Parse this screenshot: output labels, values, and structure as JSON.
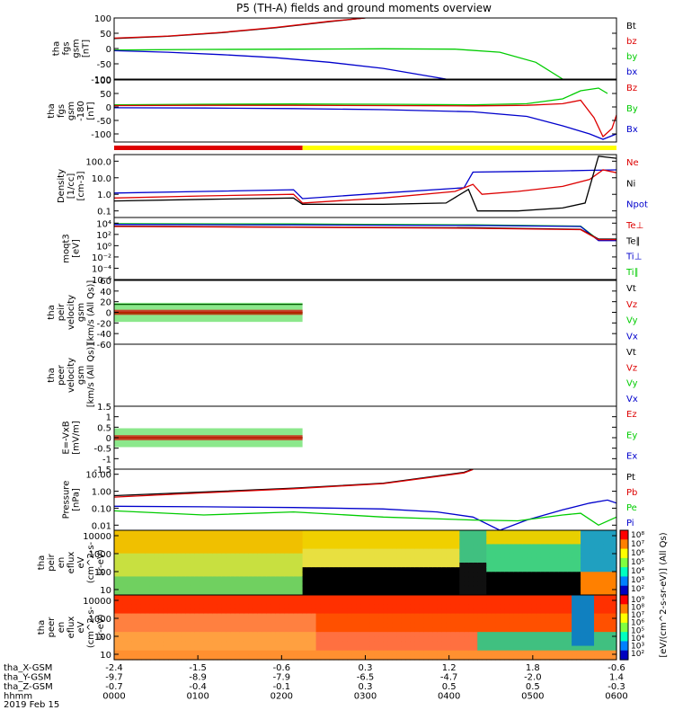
{
  "title": "P5 (TH-A) fields and ground moments overview",
  "date_label": "2019 Feb 15",
  "colors": {
    "black": "#000000",
    "red": "#dd0000",
    "green": "#00cc00",
    "blue": "#0000cc",
    "yellow": "#ffff00"
  },
  "chart_data": [
    {
      "type": "line",
      "id": "fgs",
      "ylabel": [
        "tha",
        "fgs",
        "gsm",
        "[nT]"
      ],
      "ylim": [
        -100,
        100
      ],
      "ticks": [
        "100",
        "50",
        "0",
        "-50",
        "-100"
      ],
      "tick_values": [
        100,
        50,
        0,
        -50,
        -100
      ],
      "legend": [
        "Bt",
        "bz",
        "by",
        "bx"
      ],
      "series": [
        {
          "name": "Bt",
          "color": "#000000",
          "points": [
            [
              0,
              33
            ],
            [
              60,
              40
            ],
            [
              120,
              52
            ],
            [
              180,
              68
            ],
            [
              240,
              88
            ],
            [
              280,
              100
            ]
          ]
        },
        {
          "name": "bz",
          "color": "#dd0000",
          "points": [
            [
              0,
              34
            ],
            [
              60,
              41
            ],
            [
              120,
              53
            ],
            [
              180,
              69
            ],
            [
              240,
              89
            ],
            [
              280,
              100
            ]
          ]
        },
        {
          "name": "by",
          "color": "#00cc00",
          "points": [
            [
              0,
              -5
            ],
            [
              100,
              -3
            ],
            [
              200,
              -2
            ],
            [
              300,
              -1
            ],
            [
              380,
              -2
            ],
            [
              430,
              -12
            ],
            [
              470,
              -45
            ],
            [
              500,
              -100
            ]
          ]
        },
        {
          "name": "bx",
          "color": "#0000cc",
          "points": [
            [
              0,
              -7
            ],
            [
              60,
              -12
            ],
            [
              120,
              -20
            ],
            [
              180,
              -30
            ],
            [
              240,
              -45
            ],
            [
              300,
              -65
            ],
            [
              370,
              -100
            ]
          ]
        }
      ]
    },
    {
      "type": "line",
      "id": "fgs2",
      "ylabel": [
        "tha",
        "fgs",
        "gsm",
        "-180",
        "[nT]"
      ],
      "ylim": [
        -130,
        100
      ],
      "ticks": [
        "100",
        "50",
        "0",
        "-50",
        "-100"
      ],
      "tick_values": [
        100,
        50,
        0,
        -50,
        -100
      ],
      "legend": [
        "Bz",
        "By",
        "Bx"
      ],
      "series": [
        {
          "name": "By",
          "color": "#00cc00",
          "points": [
            [
              0,
              8
            ],
            [
              100,
              10
            ],
            [
              200,
              11
            ],
            [
              300,
              10
            ],
            [
              400,
              8
            ],
            [
              460,
              12
            ],
            [
              500,
              30
            ],
            [
              520,
              60
            ],
            [
              540,
              70
            ],
            [
              550,
              50
            ]
          ]
        },
        {
          "name": "Bz",
          "color": "#dd0000",
          "points": [
            [
              0,
              5
            ],
            [
              100,
              6
            ],
            [
              200,
              6
            ],
            [
              300,
              5
            ],
            [
              400,
              4
            ],
            [
              460,
              6
            ],
            [
              500,
              12
            ],
            [
              520,
              25
            ],
            [
              535,
              -40
            ],
            [
              545,
              -110
            ],
            [
              555,
              -80
            ],
            [
              560,
              -30
            ]
          ]
        },
        {
          "name": "Bx",
          "color": "#0000cc",
          "points": [
            [
              0,
              -3
            ],
            [
              100,
              -4
            ],
            [
              200,
              -6
            ],
            [
              300,
              -10
            ],
            [
              400,
              -18
            ],
            [
              460,
              -35
            ],
            [
              500,
              -70
            ],
            [
              530,
              -100
            ],
            [
              545,
              -120
            ],
            [
              560,
              -100
            ]
          ]
        }
      ]
    },
    {
      "type": "line",
      "id": "density",
      "ylabel": [
        "Density",
        "[1/cc]",
        "[cm-3]"
      ],
      "ylim": [
        0.04,
        250
      ],
      "log": true,
      "ticks": [
        "100.0",
        "10.0",
        "1.0",
        "0.1"
      ],
      "tick_values": [
        100,
        10,
        1,
        0.1
      ],
      "legend": [
        "Ne",
        "Ni",
        "Npot"
      ],
      "series": [
        {
          "name": "Npot",
          "color": "#0000cc",
          "points": [
            [
              0,
              1.2
            ],
            [
              100,
              1.5
            ],
            [
              200,
              1.9
            ],
            [
              210,
              0.55
            ],
            [
              300,
              1.2
            ],
            [
              390,
              2.5
            ],
            [
              400,
              22
            ],
            [
              450,
              24
            ],
            [
              500,
              26
            ],
            [
              530,
              28
            ],
            [
              560,
              30
            ]
          ]
        },
        {
          "name": "Ne",
          "color": "#dd0000",
          "points": [
            [
              0,
              0.6
            ],
            [
              100,
              0.8
            ],
            [
              200,
              1.0
            ],
            [
              210,
              0.3
            ],
            [
              300,
              0.6
            ],
            [
              380,
              1.5
            ],
            [
              400,
              4
            ],
            [
              410,
              1.0
            ],
            [
              450,
              1.5
            ],
            [
              500,
              3
            ],
            [
              530,
              8
            ],
            [
              545,
              30
            ],
            [
              560,
              20
            ]
          ]
        },
        {
          "name": "Ni",
          "color": "#000000",
          "points": [
            [
              0,
              0.4
            ],
            [
              100,
              0.5
            ],
            [
              200,
              0.6
            ],
            [
              210,
              0.25
            ],
            [
              300,
              0.25
            ],
            [
              370,
              0.3
            ],
            [
              395,
              2
            ],
            [
              405,
              0.1
            ],
            [
              450,
              0.1
            ],
            [
              500,
              0.15
            ],
            [
              525,
              0.3
            ],
            [
              540,
              200
            ],
            [
              560,
              150
            ]
          ]
        }
      ]
    },
    {
      "type": "line",
      "id": "temp",
      "ylabel": [
        "moqt3",
        "[eV]"
      ],
      "ylim": [
        1e-06,
        100000
      ],
      "log": true,
      "ticks": [
        "10⁴",
        "10²",
        "10⁰",
        "10⁻²",
        "10⁻⁴",
        "10⁻⁶"
      ],
      "tick_values": [
        10000,
        100,
        1,
        0.01,
        0.0001,
        1e-06
      ],
      "legend": [
        "Te⊥",
        "Te∥",
        "Ti⊥",
        "Ti∥"
      ],
      "series": [
        {
          "name": "Ti∥",
          "color": "#00cc00",
          "points": [
            [
              0,
              8000
            ],
            [
              200,
              7000
            ],
            [
              400,
              5000
            ],
            [
              520,
              3000
            ],
            [
              540,
              10
            ],
            [
              560,
              10
            ]
          ]
        },
        {
          "name": "Ti⊥",
          "color": "#0000cc",
          "points": [
            [
              0,
              6000
            ],
            [
              200,
              5000
            ],
            [
              400,
              4000
            ],
            [
              520,
              2500
            ],
            [
              540,
              8
            ],
            [
              560,
              8
            ]
          ]
        },
        {
          "name": "Te∥",
          "color": "#000000",
          "points": [
            [
              0,
              3000
            ],
            [
              200,
              2000
            ],
            [
              400,
              1500
            ],
            [
              520,
              800
            ],
            [
              540,
              15
            ],
            [
              560,
              15
            ]
          ]
        },
        {
          "name": "Te⊥",
          "color": "#dd0000",
          "points": [
            [
              0,
              2500
            ],
            [
              200,
              1800
            ],
            [
              400,
              1200
            ],
            [
              520,
              700
            ],
            [
              540,
              12
            ],
            [
              560,
              12
            ]
          ]
        }
      ]
    },
    {
      "type": "line",
      "id": "peir",
      "ylabel": [
        "tha",
        "peir",
        "velocity",
        "gsm",
        "[km/s (All Qs)]"
      ],
      "ylim": [
        -60,
        60
      ],
      "ticks": [
        "60",
        "40",
        "20",
        "0",
        "-20",
        "-40",
        "-60"
      ],
      "tick_values": [
        60,
        40,
        20,
        0,
        -20,
        -40,
        -60
      ],
      "legend": [
        "Vt",
        "Vz",
        "Vy",
        "Vx"
      ],
      "series": [
        {
          "name": "Vt",
          "color": "#000000",
          "points": [
            [
              0,
              15
            ],
            [
              210,
              15
            ]
          ]
        },
        {
          "name": "Vx",
          "color": "#0000cc",
          "points": [
            [
              0,
              0
            ],
            [
              210,
              0
            ]
          ]
        },
        {
          "name": "Vy",
          "color": "#00cc00",
          "points": [
            [
              0,
              -2
            ],
            [
              210,
              -2
            ]
          ]
        },
        {
          "name": "Vz",
          "color": "#dd0000",
          "points": [
            [
              0,
              0
            ],
            [
              210,
              0
            ]
          ]
        }
      ]
    },
    {
      "type": "line",
      "id": "peer",
      "ylabel": [
        "tha",
        "peer",
        "velocity",
        "gsm",
        "[km/s (All Qs)]"
      ],
      "ylim": [
        -60,
        60
      ],
      "ticks": [],
      "tick_values": [],
      "legend": [
        "Vt",
        "Vz",
        "Vy",
        "Vx"
      ],
      "series": []
    },
    {
      "type": "line",
      "id": "efield",
      "ylabel": [
        "E=-VxB",
        "[mV/m]"
      ],
      "ylim": [
        -1.5,
        1.5
      ],
      "ticks": [
        "1.5",
        "1",
        "0.5",
        "0",
        "-0.5",
        "-1",
        "-1.5"
      ],
      "tick_values": [
        1.5,
        1,
        0.5,
        0,
        -0.5,
        -1,
        -1.5
      ],
      "legend": [
        "Ez",
        "Ey",
        "Ex"
      ],
      "series": [
        {
          "name": "Ex",
          "color": "#0000cc",
          "points": [
            [
              0,
              0
            ],
            [
              210,
              0
            ]
          ]
        },
        {
          "name": "Ey",
          "color": "#00cc00",
          "points": [
            [
              0,
              0
            ],
            [
              210,
              0
            ]
          ]
        },
        {
          "name": "Ez",
          "color": "#dd0000",
          "points": [
            [
              0,
              0
            ],
            [
              210,
              0
            ]
          ]
        }
      ]
    },
    {
      "type": "line",
      "id": "pressure",
      "ylabel": [
        "Pressure",
        "[nPa]"
      ],
      "ylim": [
        0.005,
        20
      ],
      "log": true,
      "ticks": [
        "10.00",
        "1.00",
        "0.10",
        "0.01"
      ],
      "tick_values": [
        10,
        1,
        0.1,
        0.01
      ],
      "legend": [
        "Pt",
        "Pb",
        "Pe",
        "Pi"
      ],
      "series": [
        {
          "name": "Pt",
          "color": "#000000",
          "points": [
            [
              0,
              0.55
            ],
            [
              100,
              0.9
            ],
            [
              200,
              1.5
            ],
            [
              300,
              3
            ],
            [
              390,
              13
            ],
            [
              400,
              20
            ]
          ]
        },
        {
          "name": "Pb",
          "color": "#dd0000",
          "points": [
            [
              0,
              0.45
            ],
            [
              100,
              0.8
            ],
            [
              200,
              1.4
            ],
            [
              300,
              2.8
            ],
            [
              390,
              12
            ],
            [
              400,
              19
            ]
          ]
        },
        {
          "name": "Pi",
          "color": "#0000cc",
          "points": [
            [
              0,
              0.13
            ],
            [
              100,
              0.12
            ],
            [
              200,
              0.11
            ],
            [
              300,
              0.09
            ],
            [
              360,
              0.06
            ],
            [
              400,
              0.03
            ],
            [
              430,
              0.005
            ],
            [
              460,
              0.02
            ],
            [
              500,
              0.08
            ],
            [
              530,
              0.2
            ],
            [
              550,
              0.3
            ],
            [
              560,
              0.2
            ]
          ]
        },
        {
          "name": "Pe",
          "color": "#00cc00",
          "points": [
            [
              0,
              0.07
            ],
            [
              100,
              0.04
            ],
            [
              200,
              0.06
            ],
            [
              300,
              0.03
            ],
            [
              400,
              0.02
            ],
            [
              450,
              0.018
            ],
            [
              500,
              0.04
            ],
            [
              520,
              0.05
            ],
            [
              540,
              0.01
            ],
            [
              560,
              0.03
            ]
          ]
        }
      ]
    },
    {
      "type": "heatmap",
      "id": "peir_spec",
      "ylabel": [
        "tha",
        "peir",
        "en",
        "eflux",
        "eV",
        "(cm^2-s-",
        "sr-eV)"
      ],
      "ylim": [
        5,
        20000
      ],
      "log": true,
      "ticks": [
        "10000",
        "1000",
        "100",
        "10"
      ],
      "tick_values": [
        10000,
        1000,
        100,
        10
      ]
    },
    {
      "type": "heatmap",
      "id": "peer_spec",
      "ylabel": [
        "tha",
        "peer",
        "en",
        "eflux",
        "eV",
        "(cm^2-s-",
        "sr-eV)"
      ],
      "ylim": [
        5,
        20000
      ],
      "log": true,
      "ticks": [
        "10000",
        "1000",
        "100",
        "10"
      ],
      "tick_values": [
        10000,
        1000,
        100,
        10
      ]
    }
  ],
  "colorbar": {
    "label": "[eV/(cm^2-s-sr-eV)] (All Qs)",
    "ticks": [
      "10⁸",
      "10⁷",
      "10⁶",
      "10⁵",
      "10⁴",
      "10³",
      "10²"
    ],
    "ticks2": [
      "10⁹",
      "10⁸",
      "10⁷",
      "10⁶",
      "10⁵",
      "10⁴",
      "10³",
      "10²"
    ]
  },
  "xaxis": {
    "rows": [
      {
        "label": "tha_X-GSM",
        "values": [
          "-2.4",
          "-1.5",
          "-0.6",
          "0.3",
          "1.2",
          "1.8",
          "-0.6"
        ]
      },
      {
        "label": "tha_Y-GSM",
        "values": [
          "-9.7",
          "-8.9",
          "-7.9",
          "-6.5",
          "-4.7",
          "-2.0",
          "1.4"
        ]
      },
      {
        "label": "tha_Z-GSM",
        "values": [
          "-0.7",
          "-0.4",
          "-0.1",
          "0.3",
          "0.5",
          "0.5",
          "-0.3"
        ]
      },
      {
        "label": "hhmm",
        "values": [
          "0000",
          "0100",
          "0200",
          "0300",
          "0400",
          "0500",
          "0600"
        ]
      }
    ]
  }
}
